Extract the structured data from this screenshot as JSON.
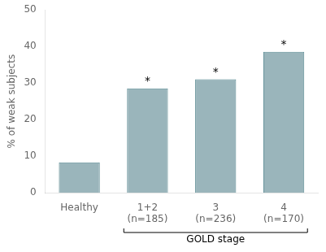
{
  "chart_data": {
    "type": "bar",
    "categories": [
      "Healthy",
      "1+2\n(n=185)",
      "3\n(n=236)",
      "4\n(n=170)"
    ],
    "values": [
      8.3,
      28.5,
      31.0,
      38.5
    ],
    "color": "#9ab5bb",
    "ylabel": "% of weak subjects",
    "ylim": [
      0,
      50
    ],
    "yticks": [
      0,
      10,
      20,
      30,
      40,
      50
    ],
    "grid": false,
    "annotations": [
      {
        "text": "*",
        "category": "1+2\n(n=185)"
      },
      {
        "text": "*",
        "category": "3\n(n=236)"
      },
      {
        "text": "*",
        "category": "4\n(n=170)"
      },
      {
        "text": "GOLD stage",
        "from": "1+2\n(n=185)",
        "to": "4\n(n=170)"
      }
    ]
  }
}
